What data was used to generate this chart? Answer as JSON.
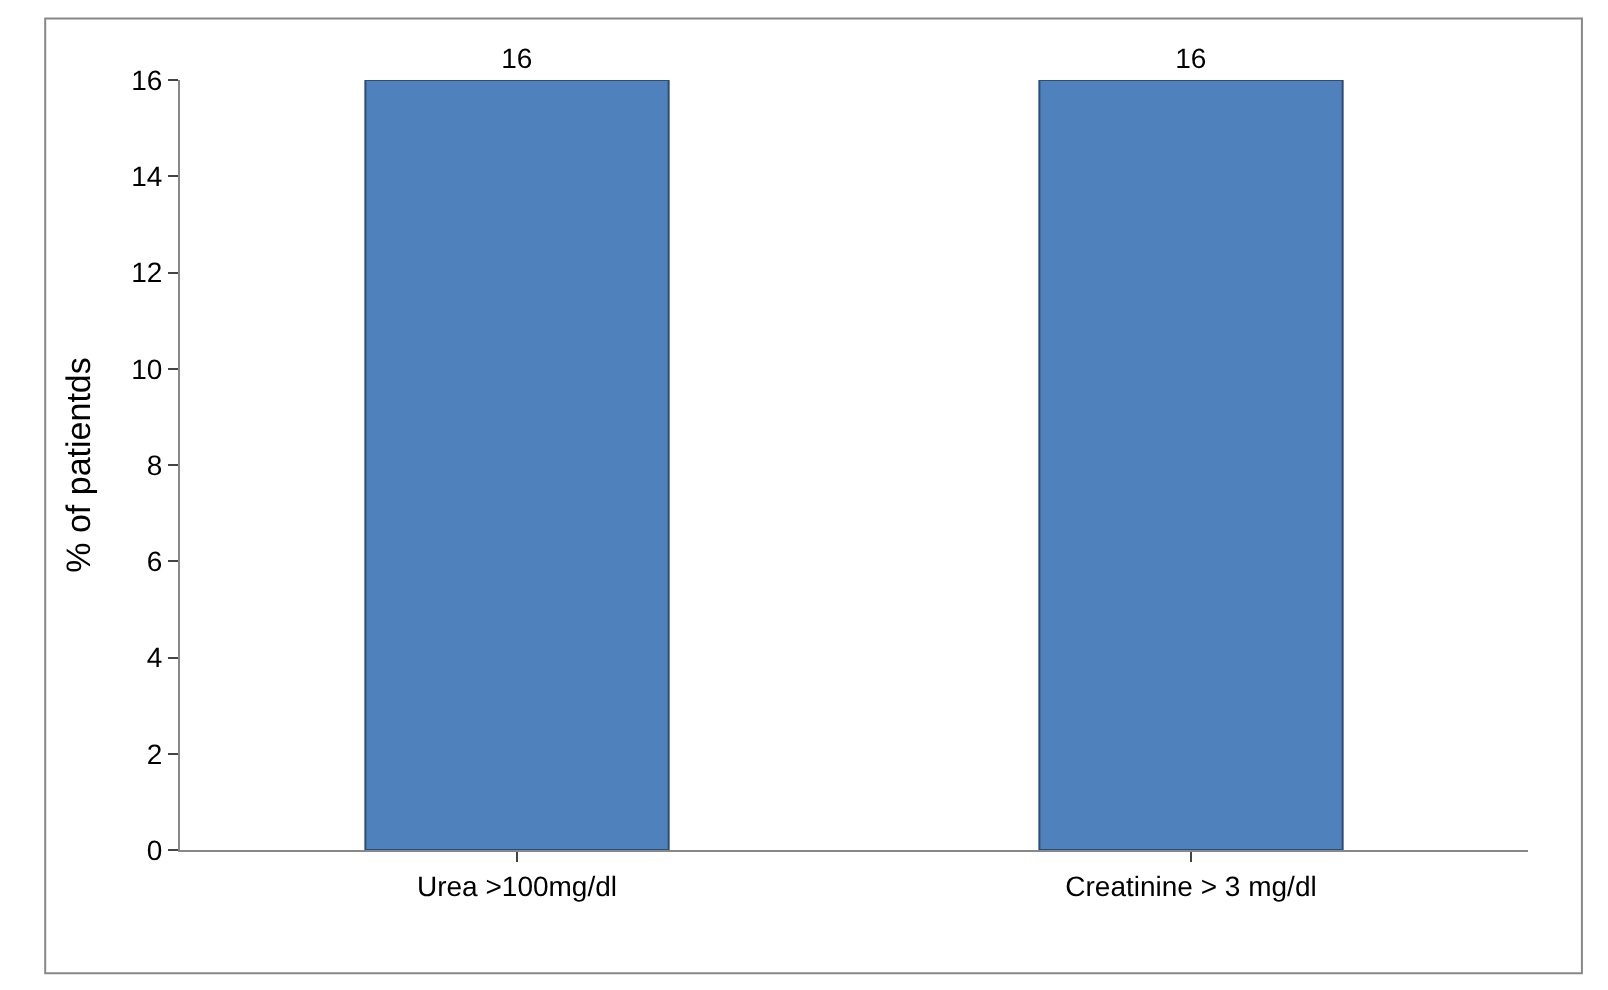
{
  "chart_data": {
    "type": "bar",
    "ylabel": "% of patientds",
    "categories": [
      "Urea >100mg/dl",
      "Creatinine > 3 mg/dl"
    ],
    "values": [
      16,
      16
    ],
    "color": "#4f81bd",
    "ylim": [
      0,
      16
    ],
    "yticks": [
      0,
      2,
      4,
      6,
      8,
      10,
      12,
      14,
      16
    ],
    "data_labels": true
  }
}
